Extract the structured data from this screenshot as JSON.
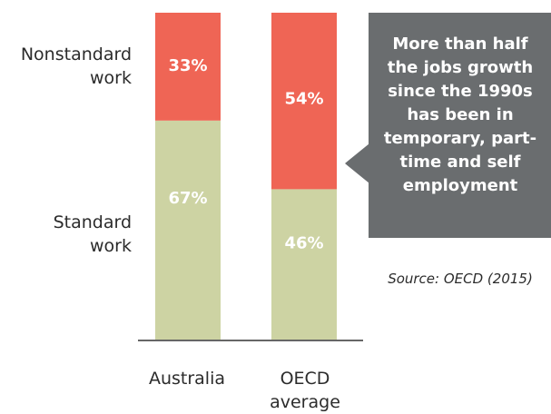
{
  "chart_data": {
    "type": "bar",
    "stacked": true,
    "percent": true,
    "categories": [
      "Australia",
      "OECD\naverage"
    ],
    "series": [
      {
        "name": "Standard\nwork",
        "values": [
          67,
          46
        ],
        "labels": [
          "67%",
          "46%"
        ],
        "color": "#cdd3a3"
      },
      {
        "name": "Nonstandard\nwork",
        "values": [
          33,
          54
        ],
        "labels": [
          "33%",
          "54%"
        ],
        "color": "#ef6555"
      }
    ],
    "ylim": [
      0,
      100
    ],
    "grid": false
  },
  "callout": {
    "text": "More than half the jobs growth since the 1990s has been in temporary, part-time and self employment"
  },
  "source": "Source: OECD (2015)"
}
